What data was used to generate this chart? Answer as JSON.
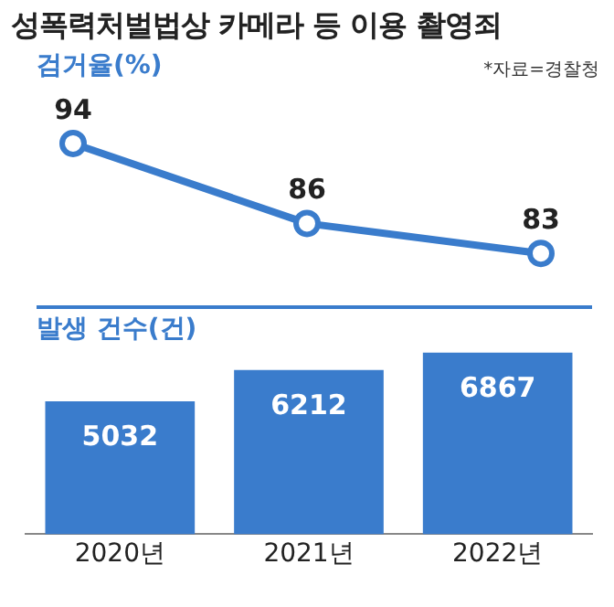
{
  "chart_data": [
    {
      "type": "line",
      "title": "성폭력처벌법상 카메라 등 이용 촬영죄",
      "subtitle": "검거율(%)",
      "annotations": [
        "*자료=경찰청"
      ],
      "categories": [
        null,
        null,
        null
      ],
      "values": [
        94,
        86,
        83
      ],
      "color": "#3a7ccc",
      "marker": "circle",
      "data_labels": true,
      "tick_labels": false
    },
    {
      "type": "bar",
      "subtitle": "발생 건수(건)",
      "categories": [
        "2020년",
        "2021년",
        "2022년"
      ],
      "values": [
        5032,
        6212,
        6867
      ],
      "color": "#3a7ccc",
      "data_labels": true,
      "tick_labels": "x"
    }
  ]
}
